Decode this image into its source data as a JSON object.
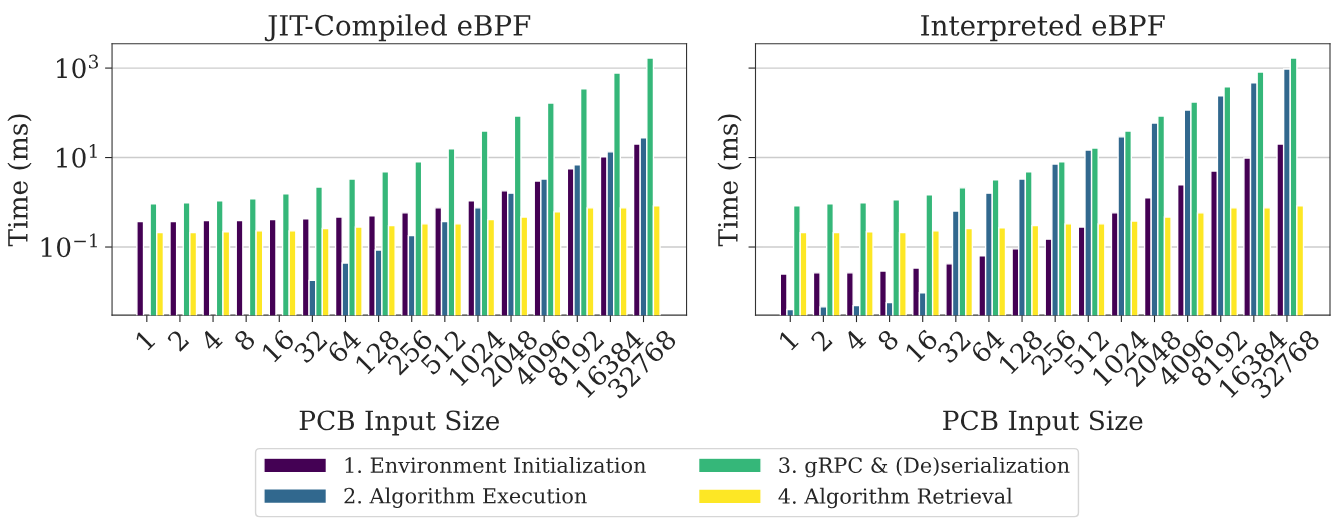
{
  "chart_data": [
    {
      "type": "bar",
      "title": "JIT-Compiled eBPF",
      "xlabel": "PCB Input Size",
      "ylabel": "Time (ms)",
      "log": "y",
      "grid": "y",
      "legend": "bottom",
      "categories": [
        "1",
        "2",
        "4",
        "8",
        "16",
        "32",
        "64",
        "128",
        "256",
        "512",
        "1024",
        "2048",
        "4096",
        "8192",
        "16384",
        "32768"
      ],
      "ylim": [
        0.003,
        3500
      ],
      "yticks": [
        {
          "value": 0.1,
          "label": "10$^{−1}$"
        },
        {
          "value": 10,
          "label": "10$^{1}$"
        },
        {
          "value": 1000,
          "label": "10$^{3}$"
        }
      ],
      "series": [
        {
          "name": "1. Environment Initialization",
          "color": "#440154",
          "values": [
            0.37,
            0.37,
            0.39,
            0.39,
            0.41,
            0.43,
            0.47,
            0.5,
            0.58,
            0.75,
            1.08,
            1.8,
            3.0,
            5.6,
            10.4,
            20
          ]
        },
        {
          "name": "2. Algorithm Execution",
          "color": "#31688e",
          "values": [
            null,
            null,
            null,
            null,
            null,
            0.018,
            0.044,
            0.086,
            0.18,
            0.37,
            0.75,
            1.6,
            3.3,
            6.9,
            13.4,
            27.5
          ]
        },
        {
          "name": "3. gRPC & (De)serialization",
          "color": "#35b779",
          "values": [
            0.92,
            0.97,
            1.08,
            1.19,
            1.54,
            2.2,
            3.3,
            4.8,
            8.0,
            15.6,
            39,
            85,
            166,
            342,
            778,
            1680
          ]
        },
        {
          "name": "4. Algorithm Retrieval",
          "color": "#fde725",
          "values": [
            0.21,
            0.21,
            0.22,
            0.23,
            0.23,
            0.26,
            0.28,
            0.3,
            0.33,
            0.33,
            0.41,
            0.47,
            0.61,
            0.75,
            0.75,
            0.83
          ]
        }
      ]
    },
    {
      "type": "bar",
      "title": "Interpreted eBPF",
      "xlabel": "PCB Input Size",
      "ylabel": "Time (ms)",
      "log": "y",
      "grid": "y",
      "tick_labels": "x",
      "categories": [
        "1",
        "2",
        "4",
        "8",
        "16",
        "32",
        "64",
        "128",
        "256",
        "512",
        "1024",
        "2048",
        "4096",
        "8192",
        "16384",
        "32768"
      ],
      "ylim": [
        0.003,
        3500
      ],
      "yticks": [
        {
          "value": 0.1,
          "label": null
        },
        {
          "value": 10,
          "label": null
        },
        {
          "value": 1000,
          "label": null
        }
      ],
      "series": [
        {
          "color": "#440154",
          "values": [
            0.025,
            0.0265,
            0.0265,
            0.029,
            0.034,
            0.042,
            0.064,
            0.091,
            0.15,
            0.28,
            0.58,
            1.26,
            2.45,
            5.0,
            9.8,
            20
          ]
        },
        {
          "color": "#31688e",
          "values": [
            0.004,
            0.0046,
            0.0049,
            0.0057,
            0.0095,
            0.64,
            1.6,
            3.3,
            7.2,
            14.8,
            29,
            59,
            116,
            239,
            466,
            955
          ]
        },
        {
          "color": "#35b779",
          "values": [
            0.83,
            0.92,
            0.97,
            1.13,
            1.47,
            2.1,
            3.2,
            4.8,
            8.0,
            16.4,
            39,
            85,
            175,
            380,
            820,
            1680
          ]
        },
        {
          "color": "#fde725",
          "values": [
            0.21,
            0.21,
            0.22,
            0.21,
            0.23,
            0.26,
            0.27,
            0.3,
            0.33,
            0.33,
            0.38,
            0.47,
            0.58,
            0.75,
            0.75,
            0.83
          ]
        }
      ]
    }
  ]
}
